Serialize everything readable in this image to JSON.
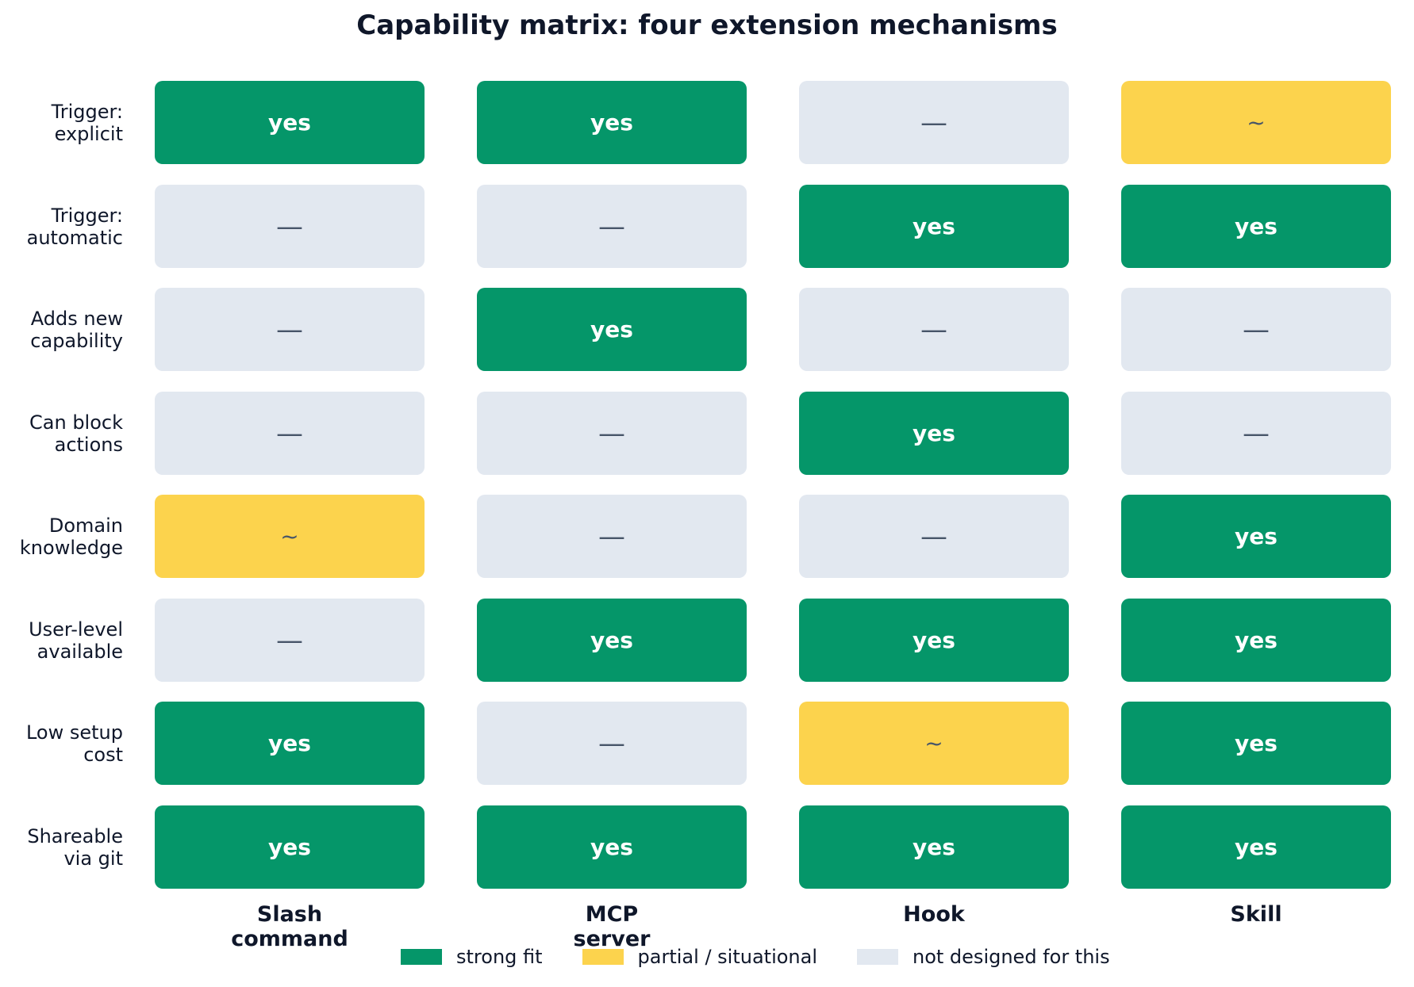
{
  "chart_data": {
    "type": "table",
    "title": "Capability matrix: four extension mechanisms",
    "columns": [
      "Slash\ncommand",
      "MCP\nserver",
      "Hook",
      "Skill"
    ],
    "rows": [
      "Trigger:\nexplicit",
      "Trigger:\nautomatic",
      "Adds new\ncapability",
      "Can block\nactions",
      "Domain\nknowledge",
      "User-level\navailable",
      "Low setup\ncost",
      "Shareable\nvia git"
    ],
    "values": [
      [
        "yes",
        "yes",
        "no",
        "partial"
      ],
      [
        "no",
        "no",
        "yes",
        "yes"
      ],
      [
        "no",
        "yes",
        "no",
        "no"
      ],
      [
        "no",
        "no",
        "yes",
        "no"
      ],
      [
        "partial",
        "no",
        "no",
        "yes"
      ],
      [
        "no",
        "yes",
        "yes",
        "yes"
      ],
      [
        "yes",
        "no",
        "partial",
        "yes"
      ],
      [
        "yes",
        "yes",
        "yes",
        "yes"
      ]
    ],
    "cell_text": {
      "yes": "yes",
      "partial": "~",
      "no": "—"
    },
    "colors": {
      "yes": {
        "fill": "#059669",
        "text": "#ffffff"
      },
      "partial": {
        "fill": "#fcd34d",
        "text": "#475569"
      },
      "no": {
        "fill": "#e2e8f0",
        "text": "#475569"
      }
    },
    "legend": [
      {
        "key": "yes",
        "label": "strong fit"
      },
      {
        "key": "partial",
        "label": "partial / situational"
      },
      {
        "key": "no",
        "label": "not designed for this"
      }
    ]
  }
}
